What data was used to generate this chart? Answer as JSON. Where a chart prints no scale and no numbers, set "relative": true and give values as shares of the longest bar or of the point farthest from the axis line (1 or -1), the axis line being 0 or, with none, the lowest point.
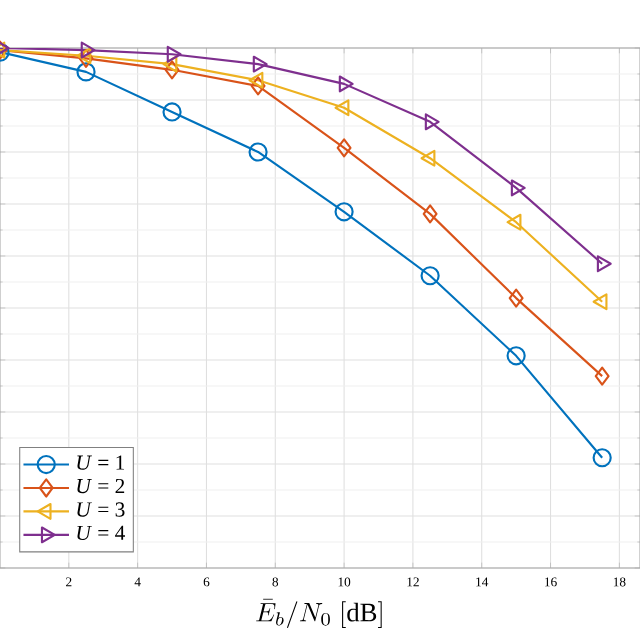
{
  "chart_data": {
    "type": "line",
    "relative": true,
    "xlabel": "\\bar{E}_b/N_0\\ [\\mathrm{dB}]",
    "xlim": [
      0,
      18.6
    ],
    "xticks": [
      2,
      4,
      6,
      8,
      10,
      12,
      14,
      16,
      18
    ],
    "grid": true,
    "legend": "bottom left",
    "line_style": "solid",
    "x": [
      0,
      2.5,
      5,
      7.5,
      10,
      12.5,
      15,
      17.5
    ],
    "series": [
      {
        "name": "*U* = 1",
        "color": "#0072bd",
        "marker": "circle",
        "values": [
          0.992,
          0.954,
          0.877,
          0.8,
          0.685,
          0.562,
          0.408,
          0.212
        ]
      },
      {
        "name": "*U* = 2",
        "color": "#d95319",
        "marker": "diamond",
        "values": [
          0.996,
          0.98,
          0.958,
          0.927,
          0.808,
          0.681,
          0.519,
          0.369
        ]
      },
      {
        "name": "*U* = 3",
        "color": "#edb120",
        "marker": "triangle",
        "values": [
          0.996,
          0.985,
          0.969,
          0.938,
          0.885,
          0.788,
          0.665,
          0.512
        ]
      },
      {
        "name": "*U* = 4",
        "color": "#7e2f8e",
        "marker": "triangle",
        "values": [
          1,
          0.996,
          0.988,
          0.969,
          0.931,
          0.858,
          0.731,
          0.585
        ]
      }
    ]
  }
}
